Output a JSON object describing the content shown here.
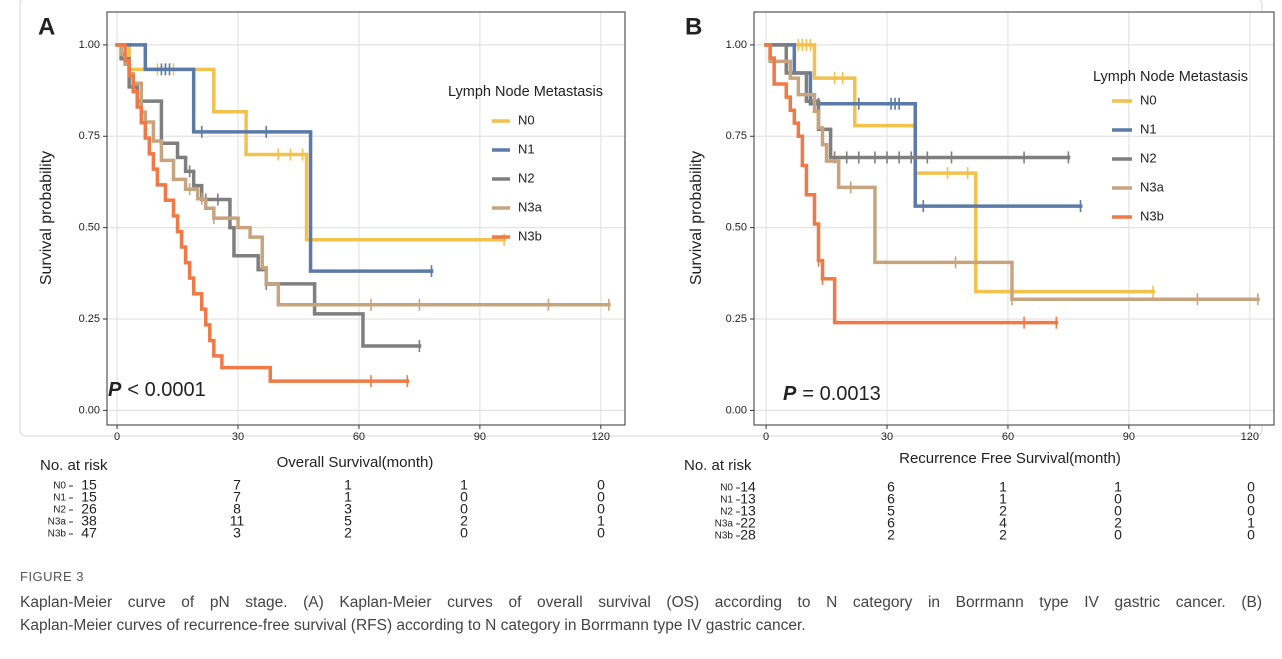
{
  "figure_label": "FIGURE 3",
  "caption_lines": [
    "Kaplan-Meier curve of pN stage. (A) Kaplan-Meier curves of overall survival (OS) according to N category in Borrmann type IV gastric cancer. (B)",
    "Kaplan-Meier curves of recurrence-free survival (RFS) according to N category in Borrmann type IV gastric cancer."
  ],
  "chart_data": [
    {
      "type": "step",
      "panel_label": "A",
      "xlabel": "Overall Survival(month)",
      "ylabel": "Survival probability",
      "legend_title": "Lymph Node Metastasis",
      "p_label": "P",
      "p_text": "< 0.0001",
      "risk_title": "No. at risk",
      "xlim": [
        -2.5,
        126
      ],
      "ylim": [
        -0.04,
        1.09
      ],
      "xticks": [
        0,
        30,
        60,
        90,
        120
      ],
      "yticks": [
        {
          "value": 0,
          "label": "0.00"
        },
        {
          "value": 0.25,
          "label": "0.25"
        },
        {
          "value": 0.5,
          "label": "0.50"
        },
        {
          "value": 0.75,
          "label": "0.75"
        },
        {
          "value": 1,
          "label": "1.00"
        }
      ],
      "grid": true,
      "series": [
        {
          "name": "N0",
          "color": "#f2c14e",
          "x": [
            0,
            3,
            24,
            32,
            47,
            96
          ],
          "values": [
            1,
            0.933,
            0.817,
            0.7,
            0.467,
            0.467
          ],
          "censor_x": [
            10,
            12,
            14,
            40,
            43,
            46,
            96
          ],
          "censor_values": [
            0.933,
            0.933,
            0.933,
            0.7,
            0.7,
            0.7,
            0.467
          ],
          "at_risk": [
            15,
            7,
            1,
            1,
            0
          ]
        },
        {
          "name": "N1",
          "color": "#5b7aa8",
          "x": [
            0,
            7,
            19,
            48,
            78
          ],
          "values": [
            1,
            0.933,
            0.762,
            0.381,
            0.381
          ],
          "censor_x": [
            11,
            12,
            13,
            21,
            37,
            78
          ],
          "censor_values": [
            0.933,
            0.933,
            0.933,
            0.762,
            0.762,
            0.381
          ],
          "at_risk": [
            15,
            7,
            1,
            0,
            0
          ]
        },
        {
          "name": "N2",
          "color": "#7f7f7f",
          "x": [
            0,
            1,
            3,
            5,
            11,
            15,
            17,
            19,
            21,
            28,
            29,
            35,
            37,
            49,
            61,
            75
          ],
          "values": [
            1,
            0.962,
            0.885,
            0.846,
            0.731,
            0.692,
            0.654,
            0.615,
            0.577,
            0.5,
            0.423,
            0.385,
            0.346,
            0.264,
            0.176,
            0.176
          ],
          "censor_x": [
            6,
            18,
            22,
            25,
            37,
            75
          ],
          "censor_values": [
            0.846,
            0.654,
            0.577,
            0.577,
            0.346,
            0.176
          ],
          "at_risk": [
            26,
            8,
            3,
            0,
            0
          ]
        },
        {
          "name": "N3a",
          "color": "#c8a47e",
          "x": [
            0,
            1,
            2,
            3,
            4,
            6,
            7,
            9,
            11,
            14,
            17,
            20,
            22,
            24,
            30,
            33,
            36,
            37,
            40,
            122
          ],
          "values": [
            1,
            0.974,
            0.947,
            0.921,
            0.895,
            0.816,
            0.789,
            0.737,
            0.684,
            0.632,
            0.605,
            0.579,
            0.553,
            0.526,
            0.5,
            0.474,
            0.39,
            0.345,
            0.289,
            0.289
          ],
          "censor_x": [
            18,
            21,
            24,
            63,
            75,
            107,
            122
          ],
          "censor_values": [
            0.605,
            0.579,
            0.526,
            0.289,
            0.289,
            0.289,
            0.289
          ],
          "at_risk": [
            38,
            11,
            5,
            2,
            1
          ]
        },
        {
          "name": "N3b",
          "color": "#ef7a45",
          "x": [
            0,
            2,
            3,
            4,
            5,
            6,
            7,
            8,
            9,
            10,
            12,
            14,
            15,
            16,
            17,
            18,
            19,
            21,
            22,
            23,
            24,
            26,
            38,
            72
          ],
          "values": [
            1,
            0.957,
            0.915,
            0.872,
            0.83,
            0.787,
            0.745,
            0.702,
            0.66,
            0.617,
            0.575,
            0.532,
            0.489,
            0.447,
            0.404,
            0.362,
            0.319,
            0.277,
            0.234,
            0.191,
            0.149,
            0.117,
            0.08,
            0.08
          ],
          "censor_x": [
            63,
            72
          ],
          "censor_values": [
            0.08,
            0.08
          ],
          "at_risk": [
            47,
            3,
            2,
            0,
            0
          ]
        }
      ]
    },
    {
      "type": "step",
      "panel_label": "B",
      "xlabel": "Recurrence Free Survival(month)",
      "ylabel": "Survival probability",
      "legend_title": "Lymph Node Metastasis",
      "p_label": "P",
      "p_text": "= 0.0013",
      "risk_title": "No. at risk",
      "xlim": [
        -3,
        126
      ],
      "ylim": [
        -0.04,
        1.09
      ],
      "xticks": [
        0,
        30,
        60,
        90,
        120
      ],
      "yticks": [
        {
          "value": 0,
          "label": "0.00"
        },
        {
          "value": 0.25,
          "label": "0.25"
        },
        {
          "value": 0.5,
          "label": "0.50"
        },
        {
          "value": 0.75,
          "label": "0.75"
        },
        {
          "value": 1,
          "label": "1.00"
        }
      ],
      "grid": true,
      "series": [
        {
          "name": "N0",
          "color": "#f2c14e",
          "x": [
            0,
            12,
            22,
            37,
            52,
            96
          ],
          "values": [
            1,
            0.909,
            0.779,
            0.649,
            0.325,
            0.325
          ],
          "censor_x": [
            8,
            9,
            10,
            11,
            17,
            19,
            45,
            50,
            96
          ],
          "censor_values": [
            1,
            1,
            1,
            1,
            0.909,
            0.909,
            0.649,
            0.649,
            0.325
          ],
          "at_risk": [
            14,
            6,
            1,
            1,
            0
          ]
        },
        {
          "name": "N1",
          "color": "#5b7aa8",
          "x": [
            0,
            7,
            11,
            37,
            78
          ],
          "values": [
            1,
            0.923,
            0.839,
            0.559,
            0.559
          ],
          "censor_x": [
            12,
            13,
            23,
            31,
            32,
            33,
            39,
            78
          ],
          "censor_values": [
            0.839,
            0.839,
            0.839,
            0.839,
            0.839,
            0.839,
            0.559,
            0.559
          ],
          "at_risk": [
            13,
            6,
            1,
            0,
            0
          ]
        },
        {
          "name": "N2",
          "color": "#7f7f7f",
          "x": [
            0,
            5,
            10,
            13,
            16,
            75
          ],
          "values": [
            1,
            0.923,
            0.846,
            0.769,
            0.692,
            0.692
          ],
          "censor_x": [
            17,
            20,
            23,
            27,
            30,
            33,
            36,
            40,
            46,
            64,
            75
          ],
          "censor_values": [
            0.692,
            0.692,
            0.692,
            0.692,
            0.692,
            0.692,
            0.692,
            0.692,
            0.692,
            0.692,
            0.692
          ],
          "at_risk": [
            13,
            5,
            2,
            0,
            0
          ]
        },
        {
          "name": "N3a",
          "color": "#c8a47e",
          "x": [
            0,
            1,
            6,
            8,
            12,
            13,
            14,
            15,
            18,
            27,
            61,
            122
          ],
          "values": [
            1,
            0.955,
            0.909,
            0.864,
            0.818,
            0.773,
            0.727,
            0.682,
            0.61,
            0.405,
            0.304,
            0.304
          ],
          "censor_x": [
            21,
            47,
            61,
            107,
            122
          ],
          "censor_values": [
            0.61,
            0.405,
            0.304,
            0.304,
            0.304
          ],
          "at_risk": [
            22,
            6,
            4,
            2,
            1
          ]
        },
        {
          "name": "N3b",
          "color": "#ef7a45",
          "x": [
            0,
            1,
            2,
            5,
            6,
            7,
            8,
            9,
            10,
            12,
            13,
            14,
            17,
            72
          ],
          "values": [
            1,
            0.964,
            0.893,
            0.857,
            0.821,
            0.786,
            0.75,
            0.67,
            0.59,
            0.51,
            0.41,
            0.36,
            0.24,
            0.24
          ],
          "censor_x": [
            13,
            14,
            64,
            72
          ],
          "censor_values": [
            0.41,
            0.36,
            0.24,
            0.24
          ],
          "at_risk": [
            28,
            2,
            2,
            0,
            0
          ]
        }
      ]
    }
  ]
}
